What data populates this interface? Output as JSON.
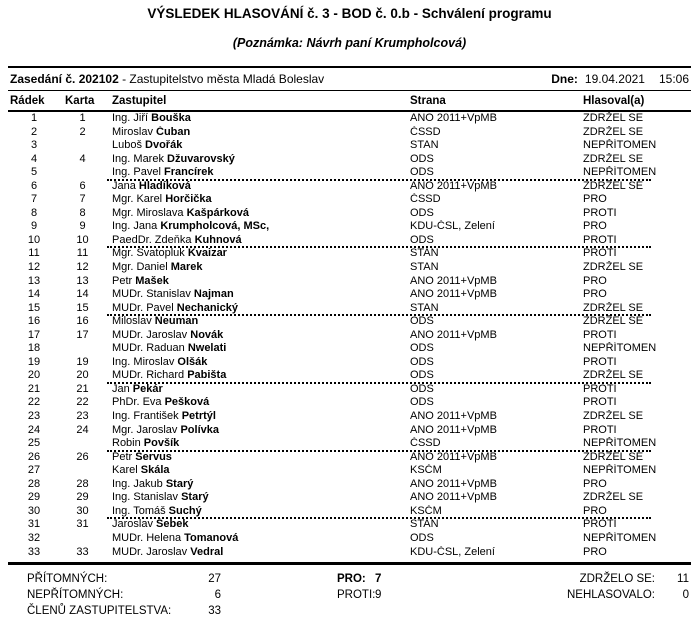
{
  "title": "VÝSLEDEK HLASOVÁNÍ č. 3 - BOD č. 0.b - Schválení programu",
  "note": "(Poznámka: Návrh paní Krumpholcová)",
  "session": {
    "label_bold": "Zasedání č. 202102",
    "label_rest": " - Zastupitelstvo města Mladá Boleslav",
    "date_label": "Dne:",
    "date": "19.04.2021",
    "time": "15:06"
  },
  "table": {
    "headers": {
      "row": "Řádek",
      "card": "Karta",
      "member": "Zastupitel",
      "party": "Strana",
      "vote": "Hlasoval(a)"
    },
    "rows": [
      {
        "row": "1",
        "card": "1",
        "name": "Ing. Jiří ",
        "surname": "Bouška",
        "party": "ANO 2011+VpMB",
        "vote": "ZDRŽEL SE",
        "sep": false
      },
      {
        "row": "2",
        "card": "2",
        "name": "Miroslav ",
        "surname": "Čuban",
        "party": "ČSSD",
        "vote": "ZDRŽEL SE",
        "sep": false
      },
      {
        "row": "3",
        "card": "",
        "name": "Luboš ",
        "surname": "Dvořák",
        "party": "STAN",
        "vote": "NEPŘÍTOMEN",
        "sep": false
      },
      {
        "row": "4",
        "card": "4",
        "name": "Ing. Marek ",
        "surname": "Džuvarovský",
        "party": "ODS",
        "vote": "ZDRŽEL SE",
        "sep": false
      },
      {
        "row": "5",
        "card": "",
        "name": "Ing. Pavel ",
        "surname": "Francírek",
        "party": "ODS",
        "vote": "NEPŘÍTOMEN",
        "sep": true
      },
      {
        "row": "6",
        "card": "6",
        "name": "Jana ",
        "surname": "Hladíková",
        "party": "ANO 2011+VpMB",
        "vote": "ZDRŽEL SE",
        "sep": false
      },
      {
        "row": "7",
        "card": "7",
        "name": "Mgr. Karel ",
        "surname": "Horčička",
        "party": "ČSSD",
        "vote": "PRO",
        "sep": false
      },
      {
        "row": "8",
        "card": "8",
        "name": "Mgr. Miroslava ",
        "surname": "Kašpárková",
        "party": "ODS",
        "vote": "PROTI",
        "sep": false
      },
      {
        "row": "9",
        "card": "9",
        "name": "Ing. Jana ",
        "surname": "Krumpholcová, MSc,",
        "party": "KDU-ČSL, Zelení",
        "vote": "PRO",
        "sep": false
      },
      {
        "row": "10",
        "card": "10",
        "name": "PaedDr. Zdeňka ",
        "surname": "Kuhnová",
        "party": "ODS",
        "vote": "PROTI",
        "sep": true
      },
      {
        "row": "11",
        "card": "11",
        "name": "Mgr. Svatopluk ",
        "surname": "Kvaizar",
        "party": "STAN",
        "vote": "PROTI",
        "sep": false
      },
      {
        "row": "12",
        "card": "12",
        "name": "Mgr. Daniel ",
        "surname": "Marek",
        "party": "STAN",
        "vote": "ZDRŽEL SE",
        "sep": false
      },
      {
        "row": "13",
        "card": "13",
        "name": "Petr ",
        "surname": "Mašek",
        "party": "ANO 2011+VpMB",
        "vote": "PRO",
        "sep": false
      },
      {
        "row": "14",
        "card": "14",
        "name": "MUDr. Stanislav ",
        "surname": "Najman",
        "party": "ANO 2011+VpMB",
        "vote": "PRO",
        "sep": false
      },
      {
        "row": "15",
        "card": "15",
        "name": "MUDr. Pavel ",
        "surname": "Nechanický",
        "party": "STAN",
        "vote": "ZDRŽEL SE",
        "sep": true
      },
      {
        "row": "16",
        "card": "16",
        "name": "Miloslav ",
        "surname": "Neuman",
        "party": "ODS",
        "vote": "ZDRŽEL SE",
        "sep": false
      },
      {
        "row": "17",
        "card": "17",
        "name": "MUDr. Jaroslav ",
        "surname": "Novák",
        "party": "ANO 2011+VpMB",
        "vote": "PROTI",
        "sep": false
      },
      {
        "row": "18",
        "card": "",
        "name": "MUDr. Raduan ",
        "surname": "Nwelati",
        "party": "ODS",
        "vote": "NEPŘÍTOMEN",
        "sep": false
      },
      {
        "row": "19",
        "card": "19",
        "name": "Ing. Miroslav ",
        "surname": "Olšák",
        "party": "ODS",
        "vote": "PROTI",
        "sep": false
      },
      {
        "row": "20",
        "card": "20",
        "name": "MUDr. Richard ",
        "surname": "Pabišta",
        "party": "ODS",
        "vote": "ZDRŽEL SE",
        "sep": true
      },
      {
        "row": "21",
        "card": "21",
        "name": "Jan ",
        "surname": "Pekár",
        "party": "ODS",
        "vote": "PROTI",
        "sep": false
      },
      {
        "row": "22",
        "card": "22",
        "name": "PhDr. Eva ",
        "surname": "Pešková",
        "party": "ODS",
        "vote": "PROTI",
        "sep": false
      },
      {
        "row": "23",
        "card": "23",
        "name": "Ing. František ",
        "surname": "Petrtýl",
        "party": "ANO 2011+VpMB",
        "vote": "ZDRŽEL SE",
        "sep": false
      },
      {
        "row": "24",
        "card": "24",
        "name": "Mgr. Jaroslav ",
        "surname": "Polívka",
        "party": "ANO 2011+VpMB",
        "vote": "PROTI",
        "sep": false
      },
      {
        "row": "25",
        "card": "",
        "name": "Robin ",
        "surname": "Povšík",
        "party": "ČSSD",
        "vote": "NEPŘÍTOMEN",
        "sep": true
      },
      {
        "row": "26",
        "card": "26",
        "name": "Petr ",
        "surname": "Servus",
        "party": "ANO 2011+VpMB",
        "vote": "ZDRŽEL SE",
        "sep": false
      },
      {
        "row": "27",
        "card": "",
        "name": "Karel ",
        "surname": "Skála",
        "party": "KSČM",
        "vote": "NEPŘÍTOMEN",
        "sep": false
      },
      {
        "row": "28",
        "card": "28",
        "name": "Ing. Jakub ",
        "surname": "Starý",
        "party": "ANO 2011+VpMB",
        "vote": "PRO",
        "sep": false
      },
      {
        "row": "29",
        "card": "29",
        "name": "Ing. Stanislav ",
        "surname": "Starý",
        "party": "ANO 2011+VpMB",
        "vote": "ZDRŽEL SE",
        "sep": false
      },
      {
        "row": "30",
        "card": "30",
        "name": "Ing. Tomáš ",
        "surname": "Suchý",
        "party": "KSČM",
        "vote": "PRO",
        "sep": true
      },
      {
        "row": "31",
        "card": "31",
        "name": "Jaroslav ",
        "surname": "Šebek",
        "party": "STAN",
        "vote": "PROTI",
        "sep": false
      },
      {
        "row": "32",
        "card": "",
        "name": "MUDr. Helena ",
        "surname": "Tomanová",
        "party": "ODS",
        "vote": "NEPŘÍTOMEN",
        "sep": false
      },
      {
        "row": "33",
        "card": "33",
        "name": "MUDr. Jaroslav ",
        "surname": "Vedral",
        "party": "KDU-ČSL, Zelení",
        "vote": "PRO",
        "sep": false
      }
    ]
  },
  "summary": {
    "present_label": "PŘÍTOMNÝCH:",
    "present": "27",
    "absent_label": "NEPŘÍTOMNÝCH:",
    "absent": "6",
    "members_label": "ČLENŮ ZASTUPITELSTVA:",
    "members": "33",
    "pro_label": "PRO:",
    "pro": "7",
    "against_label": "PROTI:",
    "against": "9",
    "abstained_label": "ZDRŽELO SE:",
    "abstained": "11",
    "not_voted_label": "NEHLASOVALO:",
    "not_voted": "0"
  }
}
